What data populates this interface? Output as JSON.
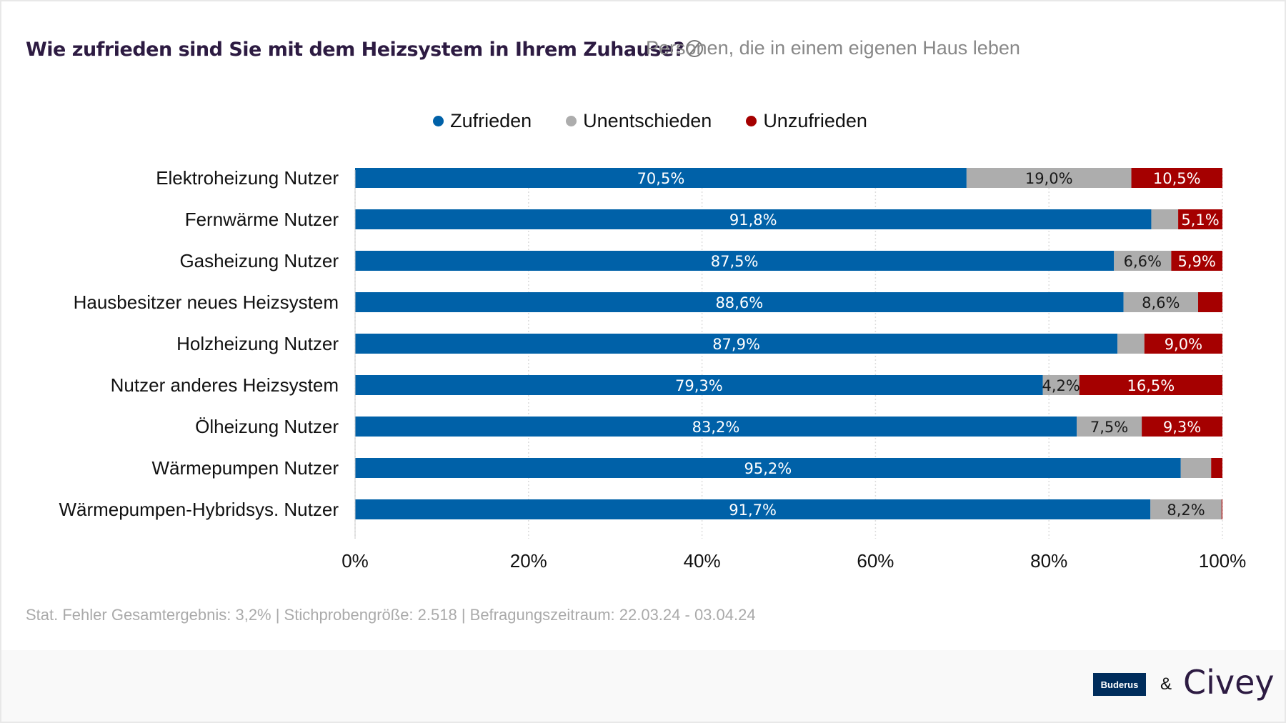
{
  "header": {
    "title": "Wie zufrieden sind Sie mit dem Heizsystem in Ihrem Zuhause?",
    "subtitle": "Personen, die in einem eigenen Haus leben",
    "title_icon": "no-filter-icon"
  },
  "footer": {
    "text": "Stat. Fehler Gesamtergebnis: 3,2% | Stichprobengröße: 2.518 | Befragungszeitraum: 22.03.24 - 03.04.24",
    "logo_left": "Buderus",
    "separator": "&",
    "logo_right": "Civey"
  },
  "chart_data": {
    "type": "bar",
    "orientation": "horizontal",
    "stacked": true,
    "xlim": [
      0,
      100
    ],
    "x_ticks": [
      "0%",
      "20%",
      "40%",
      "60%",
      "80%",
      "100%"
    ],
    "grid": true,
    "legend_placement": "top",
    "categories": [
      "Elektroheizung Nutzer",
      "Fernwärme Nutzer",
      "Gasheizung Nutzer",
      "Hausbesitzer neues Heizsystem",
      "Holzheizung Nutzer",
      "Nutzer anderes Heizsystem",
      "Ölheizung Nutzer",
      "Wärmepumpen Nutzer",
      "Wärmepumpen-Hybridsys. Nutzer"
    ],
    "series": [
      {
        "name": "Zufrieden",
        "color": "#0061a8",
        "label_color": "#ffffff",
        "values": [
          70.5,
          91.8,
          87.5,
          88.6,
          87.9,
          79.3,
          83.2,
          95.2,
          91.7
        ],
        "labels": [
          "70,5%",
          "91,8%",
          "87,5%",
          "88,6%",
          "87,9%",
          "79,3%",
          "83,2%",
          "95,2%",
          "91,7%"
        ]
      },
      {
        "name": "Unentschieden",
        "color": "#adadad",
        "label_color": "#1a1a1a",
        "values": [
          19.0,
          3.1,
          6.6,
          8.6,
          3.1,
          4.2,
          7.5,
          3.5,
          8.2
        ],
        "labels": [
          "19,0%",
          "",
          "6,6%",
          "8,6%",
          "",
          "4,2%",
          "7,5%",
          "",
          "8,2%"
        ]
      },
      {
        "name": "Unzufrieden",
        "color": "#a50000",
        "label_color": "#ffffff",
        "values": [
          10.5,
          5.1,
          5.9,
          2.8,
          9.0,
          16.5,
          9.3,
          1.3,
          0.1
        ],
        "labels": [
          "10,5%",
          "5,1%",
          "5,9%",
          "",
          "9,0%",
          "16,5%",
          "9,3%",
          "",
          ""
        ]
      }
    ]
  }
}
